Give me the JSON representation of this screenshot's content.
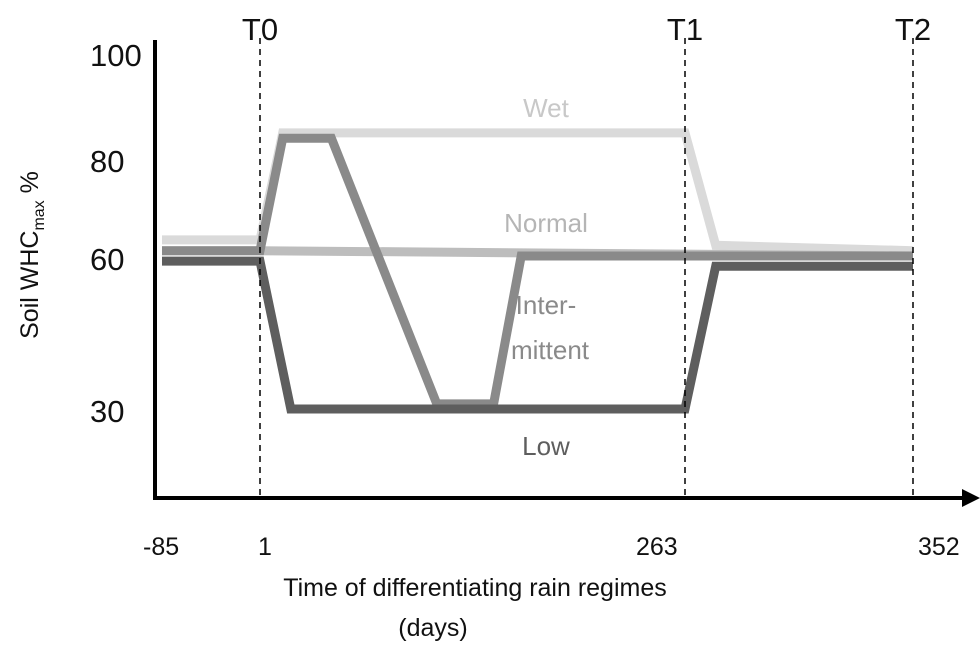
{
  "chart_data": {
    "type": "line",
    "ylabel": "Soil WHC",
    "ylabel_subscript": "max",
    "ylabel_suffix": " %",
    "xlabel_line1": "Time of differentiating rain regimes",
    "xlabel_line2": "(days)",
    "y_ticks": [
      "100",
      "80",
      "60",
      "30"
    ],
    "x_ticks": [
      "-85",
      "1",
      "263",
      "352"
    ],
    "markers": [
      {
        "label": "T0",
        "day": 1
      },
      {
        "label": "T1",
        "day": 263
      },
      {
        "label": "T2",
        "day": 352
      }
    ],
    "series": [
      {
        "name": "Wet",
        "color": "#dadada",
        "points": [
          [
            -85,
            63
          ],
          [
            1,
            63
          ],
          [
            15,
            83
          ],
          [
            263,
            83
          ],
          [
            275,
            62
          ],
          [
            352,
            61
          ]
        ]
      },
      {
        "name": "Normal",
        "color": "#bdbdbd",
        "points": [
          [
            -85,
            61
          ],
          [
            1,
            61
          ],
          [
            352,
            60
          ]
        ]
      },
      {
        "name": "Inter-mittent",
        "color": "#8a8a8a",
        "points": [
          [
            -85,
            61
          ],
          [
            1,
            61
          ],
          [
            15,
            82
          ],
          [
            45,
            82
          ],
          [
            110,
            31
          ],
          [
            145,
            31
          ],
          [
            162,
            60
          ],
          [
            352,
            60
          ]
        ]
      },
      {
        "name": "Low",
        "color": "#5e5e5e",
        "points": [
          [
            -85,
            59
          ],
          [
            1,
            59
          ],
          [
            20,
            30
          ],
          [
            263,
            30
          ],
          [
            275,
            58
          ],
          [
            352,
            58
          ]
        ]
      }
    ],
    "series_labels": [
      {
        "series": "Wet",
        "lines": [
          "Wet"
        ],
        "color": "#c8c8c8"
      },
      {
        "series": "Normal",
        "lines": [
          "Normal"
        ],
        "color": "#b5b5b5"
      },
      {
        "series": "Inter-mittent",
        "lines": [
          "Inter-",
          "mittent"
        ],
        "color": "#8a8a8a"
      },
      {
        "series": "Low",
        "lines": [
          "Low"
        ],
        "color": "#5e5e5e"
      }
    ]
  }
}
